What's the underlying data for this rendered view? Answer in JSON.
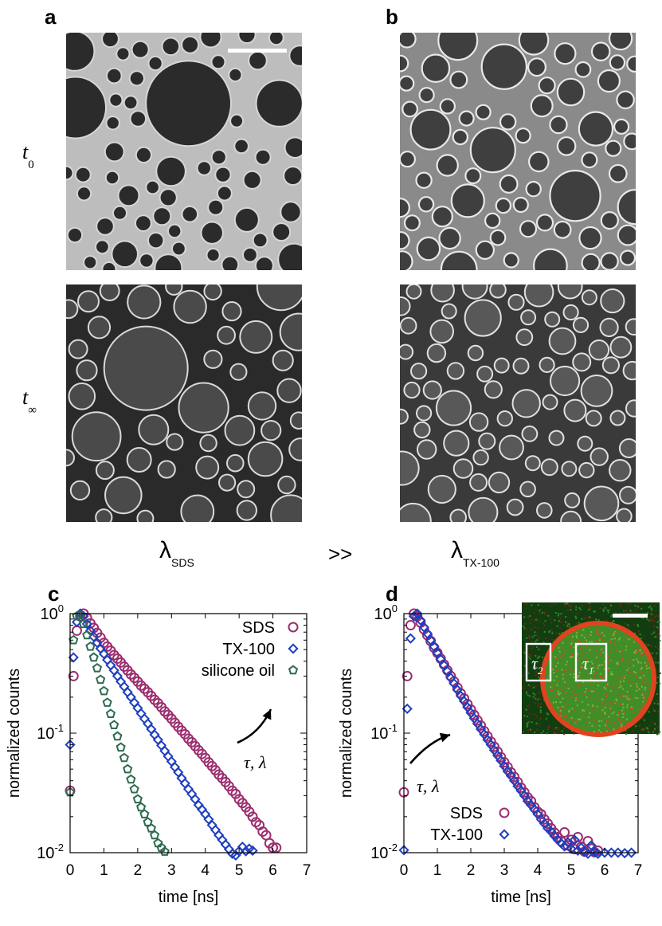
{
  "panels": {
    "a": "a",
    "b": "b",
    "c": "c",
    "d": "d"
  },
  "rows": {
    "t0_base": "t",
    "t0_sub": "0",
    "tinf_base": "t",
    "tinf_sub": "∞"
  },
  "comparison": {
    "left_base": "λ",
    "left_sub": "SDS",
    "relation": ">>",
    "right_base": "λ",
    "right_sub": "TX-100"
  },
  "colors": {
    "sds": "#9b2d6e",
    "tx100": "#1f3fbf",
    "silicone": "#2e6b4f",
    "inset_green": "#2f8a2a",
    "inset_red": "#d8402a"
  },
  "chart_data": [
    {
      "type": "scatter",
      "panel": "c",
      "xlabel": "time [ns]",
      "ylabel": "normalized counts",
      "xlim": [
        0,
        7
      ],
      "ylim": [
        0.01,
        1
      ],
      "yscale": "log",
      "xticks": [
        0,
        1,
        2,
        3,
        4,
        5,
        6,
        7
      ],
      "yticks": [
        {
          "value": 1,
          "base": "10",
          "exp": "0"
        },
        {
          "value": 0.1,
          "base": "10",
          "exp": "-1"
        },
        {
          "value": 0.01,
          "base": "10",
          "exp": "-2"
        }
      ],
      "legend_position": "top-right",
      "annotation": "τ, λ",
      "series": [
        {
          "name": "SDS",
          "marker": "circle",
          "color": "#9b2d6e",
          "x": [
            0.0,
            0.1,
            0.2,
            0.3,
            0.4,
            0.5,
            0.6,
            0.7,
            0.8,
            0.9,
            1.0,
            1.1,
            1.2,
            1.3,
            1.4,
            1.5,
            1.6,
            1.7,
            1.8,
            1.9,
            2.0,
            2.1,
            2.2,
            2.3,
            2.4,
            2.5,
            2.6,
            2.7,
            2.8,
            2.9,
            3.0,
            3.1,
            3.2,
            3.3,
            3.4,
            3.5,
            3.6,
            3.7,
            3.8,
            3.9,
            4.0,
            4.1,
            4.2,
            4.3,
            4.4,
            4.5,
            4.6,
            4.7,
            4.8,
            4.9,
            5.0,
            5.1,
            5.2,
            5.3,
            5.4,
            5.5,
            5.6,
            5.7,
            5.8,
            5.9,
            6.0,
            6.1
          ],
          "y": [
            0.033,
            0.3,
            0.72,
            0.95,
            1.0,
            0.92,
            0.83,
            0.76,
            0.69,
            0.63,
            0.57,
            0.53,
            0.49,
            0.45,
            0.42,
            0.39,
            0.36,
            0.335,
            0.31,
            0.29,
            0.27,
            0.25,
            0.235,
            0.22,
            0.205,
            0.19,
            0.178,
            0.165,
            0.152,
            0.142,
            0.132,
            0.122,
            0.113,
            0.105,
            0.098,
            0.09,
            0.084,
            0.078,
            0.072,
            0.067,
            0.062,
            0.057,
            0.053,
            0.049,
            0.045,
            0.042,
            0.039,
            0.036,
            0.033,
            0.031,
            0.028,
            0.026,
            0.024,
            0.022,
            0.02,
            0.018,
            0.017,
            0.015,
            0.014,
            0.012,
            0.011,
            0.011
          ]
        },
        {
          "name": "TX-100",
          "marker": "diamond",
          "color": "#1f3fbf",
          "x": [
            0.0,
            0.1,
            0.2,
            0.3,
            0.4,
            0.5,
            0.6,
            0.7,
            0.8,
            0.9,
            1.0,
            1.1,
            1.2,
            1.3,
            1.4,
            1.5,
            1.6,
            1.7,
            1.8,
            1.9,
            2.0,
            2.1,
            2.2,
            2.3,
            2.4,
            2.5,
            2.6,
            2.7,
            2.8,
            2.9,
            3.0,
            3.1,
            3.2,
            3.3,
            3.4,
            3.5,
            3.6,
            3.7,
            3.8,
            3.9,
            4.0,
            4.1,
            4.2,
            4.3,
            4.4,
            4.5,
            4.6,
            4.7,
            4.8,
            4.9,
            5.0,
            5.1,
            5.2,
            5.3,
            5.4
          ],
          "y": [
            0.08,
            0.43,
            0.85,
            1.0,
            0.95,
            0.82,
            0.72,
            0.64,
            0.57,
            0.51,
            0.46,
            0.41,
            0.37,
            0.335,
            0.3,
            0.27,
            0.245,
            0.22,
            0.2,
            0.18,
            0.162,
            0.146,
            0.132,
            0.12,
            0.108,
            0.097,
            0.088,
            0.079,
            0.071,
            0.064,
            0.058,
            0.052,
            0.047,
            0.042,
            0.038,
            0.034,
            0.031,
            0.028,
            0.025,
            0.023,
            0.021,
            0.019,
            0.017,
            0.0155,
            0.014,
            0.0128,
            0.0117,
            0.0107,
            0.0098,
            0.0091,
            0.0103,
            0.0112,
            0.0103,
            0.0108,
            0.0104
          ]
        },
        {
          "name": "silicone oil",
          "marker": "pentagon",
          "color": "#2e6b4f",
          "x": [
            0.0,
            0.1,
            0.2,
            0.3,
            0.4,
            0.5,
            0.6,
            0.7,
            0.8,
            0.9,
            1.0,
            1.1,
            1.2,
            1.3,
            1.4,
            1.5,
            1.6,
            1.7,
            1.8,
            1.9,
            2.0,
            2.1,
            2.2,
            2.3,
            2.4,
            2.5,
            2.6,
            2.7,
            2.8
          ],
          "y": [
            0.032,
            0.6,
            0.95,
            0.97,
            0.82,
            0.66,
            0.53,
            0.43,
            0.35,
            0.28,
            0.225,
            0.18,
            0.145,
            0.117,
            0.094,
            0.076,
            0.062,
            0.05,
            0.041,
            0.034,
            0.028,
            0.024,
            0.021,
            0.018,
            0.016,
            0.014,
            0.012,
            0.011,
            0.0102
          ]
        }
      ]
    },
    {
      "type": "scatter",
      "panel": "d",
      "xlabel": "time [ns]",
      "ylabel": "normalized counts",
      "xlim": [
        0,
        7
      ],
      "ylim": [
        0.01,
        1
      ],
      "yscale": "log",
      "xticks": [
        0,
        1,
        2,
        3,
        4,
        5,
        6,
        7
      ],
      "yticks": [
        {
          "value": 1,
          "base": "10",
          "exp": "0"
        },
        {
          "value": 0.1,
          "base": "10",
          "exp": "-1"
        },
        {
          "value": 0.01,
          "base": "10",
          "exp": "-2"
        }
      ],
      "legend_position": "bottom-left",
      "annotation": "τ, λ",
      "inset": {
        "tau_left_base": "τ",
        "tau_left_sub": "2",
        "tau_right_base": "τ",
        "tau_right_sub": "1"
      },
      "series": [
        {
          "name": "SDS",
          "marker": "circle",
          "color": "#9b2d6e",
          "x": [
            0.0,
            0.1,
            0.2,
            0.3,
            0.4,
            0.5,
            0.6,
            0.7,
            0.8,
            0.9,
            1.0,
            1.1,
            1.2,
            1.3,
            1.4,
            1.5,
            1.6,
            1.7,
            1.8,
            1.9,
            2.0,
            2.1,
            2.2,
            2.3,
            2.4,
            2.5,
            2.6,
            2.7,
            2.8,
            2.9,
            3.0,
            3.1,
            3.2,
            3.3,
            3.4,
            3.5,
            3.6,
            3.7,
            3.8,
            3.9,
            4.0,
            4.1,
            4.2,
            4.3,
            4.4,
            4.5,
            4.6,
            4.7,
            4.8,
            4.9,
            5.0,
            5.1,
            5.2,
            5.3,
            5.4,
            5.5,
            5.6,
            5.7,
            5.8
          ],
          "y": [
            0.032,
            0.3,
            0.8,
            1.0,
            0.95,
            0.84,
            0.74,
            0.66,
            0.59,
            0.52,
            0.47,
            0.42,
            0.375,
            0.335,
            0.3,
            0.27,
            0.24,
            0.215,
            0.195,
            0.175,
            0.158,
            0.142,
            0.128,
            0.116,
            0.104,
            0.094,
            0.085,
            0.077,
            0.07,
            0.063,
            0.057,
            0.052,
            0.047,
            0.043,
            0.039,
            0.035,
            0.032,
            0.029,
            0.027,
            0.024,
            0.022,
            0.021,
            0.019,
            0.0175,
            0.016,
            0.0147,
            0.0135,
            0.0125,
            0.0148,
            0.0115,
            0.0128,
            0.0107,
            0.0135,
            0.0112,
            0.0102,
            0.0125,
            0.0108,
            0.0101,
            0.0104
          ]
        },
        {
          "name": "TX-100",
          "marker": "diamond",
          "color": "#1f3fbf",
          "x": [
            0.0,
            0.1,
            0.2,
            0.3,
            0.4,
            0.5,
            0.6,
            0.7,
            0.8,
            0.9,
            1.0,
            1.1,
            1.2,
            1.3,
            1.4,
            1.5,
            1.6,
            1.7,
            1.8,
            1.9,
            2.0,
            2.1,
            2.2,
            2.3,
            2.4,
            2.5,
            2.6,
            2.7,
            2.8,
            2.9,
            3.0,
            3.1,
            3.2,
            3.3,
            3.4,
            3.5,
            3.6,
            3.7,
            3.8,
            3.9,
            4.0,
            4.1,
            4.2,
            4.3,
            4.4,
            4.5,
            4.6,
            4.7,
            4.8,
            4.9,
            5.0,
            5.1,
            5.2,
            5.3,
            5.4,
            5.5,
            5.6,
            5.7,
            5.8,
            6.0,
            6.2,
            6.4,
            6.6,
            6.8
          ],
          "y": [
            0.0105,
            0.16,
            0.62,
            0.95,
            1.0,
            0.88,
            0.77,
            0.68,
            0.6,
            0.53,
            0.47,
            0.415,
            0.37,
            0.33,
            0.29,
            0.26,
            0.23,
            0.205,
            0.185,
            0.165,
            0.148,
            0.133,
            0.12,
            0.108,
            0.098,
            0.088,
            0.08,
            0.072,
            0.065,
            0.059,
            0.053,
            0.048,
            0.044,
            0.04,
            0.036,
            0.033,
            0.03,
            0.027,
            0.025,
            0.023,
            0.021,
            0.019,
            0.0175,
            0.016,
            0.015,
            0.0138,
            0.0128,
            0.012,
            0.0113,
            0.0122,
            0.0108,
            0.0128,
            0.0104,
            0.011,
            0.0102,
            0.0098,
            0.0115,
            0.0101,
            0.0098,
            0.01,
            0.01,
            0.01,
            0.0099,
            0.01
          ]
        }
      ]
    }
  ]
}
